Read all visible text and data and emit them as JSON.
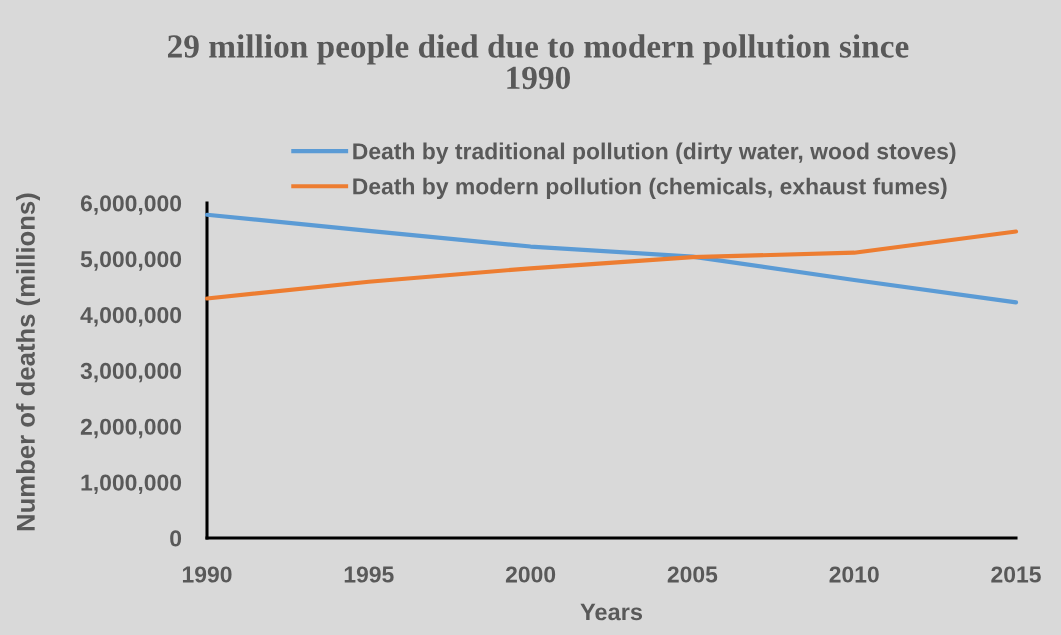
{
  "chart_data": {
    "type": "line",
    "title": "29 million people died due to modern pollution since 1990",
    "xlabel": "Years",
    "ylabel": "Number of deaths (millions)",
    "categories": [
      "1990",
      "1995",
      "2000",
      "2005",
      "2010",
      "2015"
    ],
    "series": [
      {
        "name": "Death by traditional pollution (dirty water, wood stoves)",
        "color": "#5b9bd5",
        "values": [
          5790000,
          5500000,
          5220000,
          5040000,
          4620000,
          4220000
        ]
      },
      {
        "name": "Death by modern pollution (chemicals, exhaust fumes)",
        "color": "#ed7d31",
        "values": [
          4290000,
          4590000,
          4830000,
          5030000,
          5110000,
          5490000
        ]
      }
    ],
    "ylim": [
      0,
      6000000
    ],
    "yticks": [
      0,
      {
        "value": 1000000,
        "label": "1,000,000"
      },
      {
        "value": 2000000,
        "label": "2,000,000"
      },
      {
        "value": 3000000,
        "label": "3,000,000"
      },
      {
        "value": 4000000,
        "label": "4,000,000"
      },
      {
        "value": 5000000,
        "label": "5,000,000"
      },
      {
        "value": 6000000,
        "label": "6,000,000"
      }
    ],
    "grid": false,
    "legend": "top",
    "marker": "none",
    "line_style": "solid"
  }
}
